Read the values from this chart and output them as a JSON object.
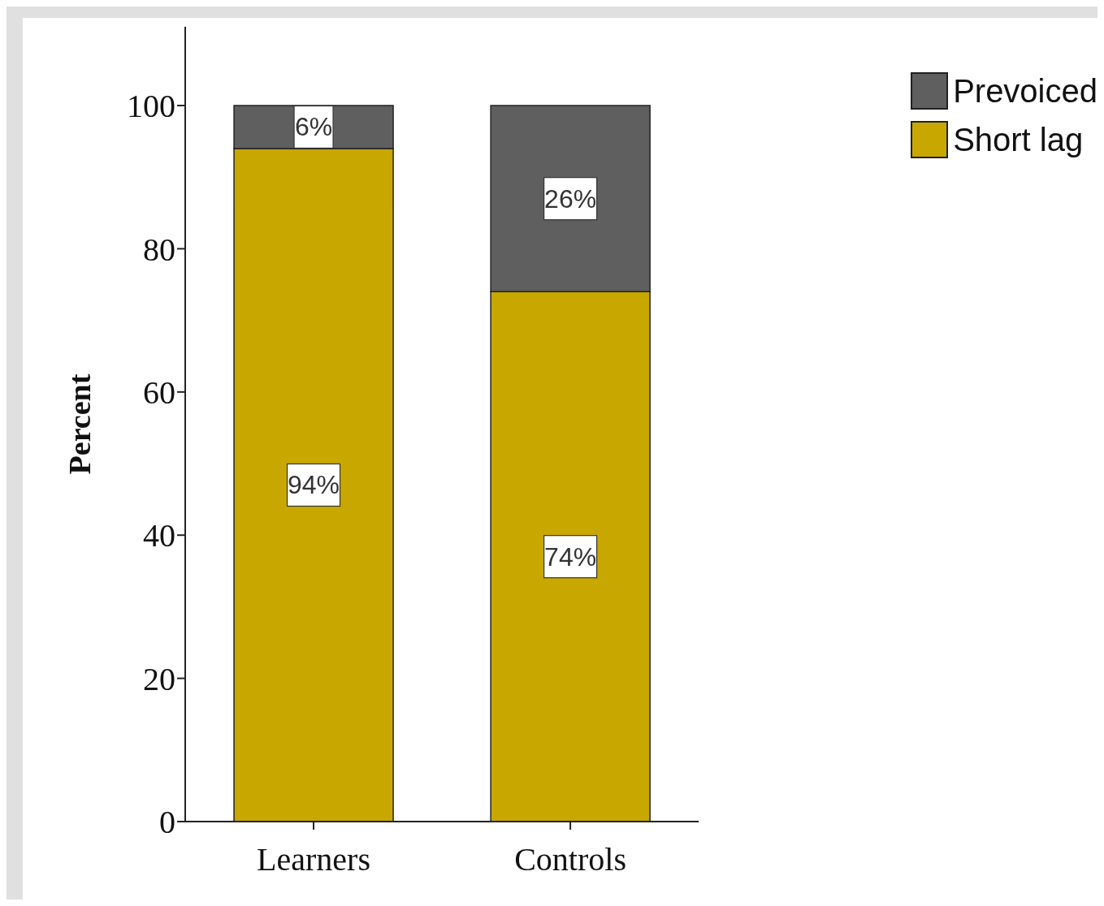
{
  "chart_data": {
    "type": "bar",
    "stacked": true,
    "ylabel": "Percent",
    "categories": [
      "Learners",
      "Controls"
    ],
    "series": [
      {
        "name": "Short lag",
        "color": "#c8a800",
        "values": [
          94,
          74
        ],
        "value_labels": [
          "94%",
          "74%"
        ]
      },
      {
        "name": "Prevoiced",
        "color": "#5f5f5f",
        "values": [
          6,
          26
        ],
        "value_labels": [
          "6%",
          "26%"
        ]
      }
    ],
    "ylim": [
      0,
      111
    ],
    "yticks": [
      0,
      20,
      40,
      60,
      80,
      100
    ],
    "grid": false,
    "legend": "top right"
  }
}
